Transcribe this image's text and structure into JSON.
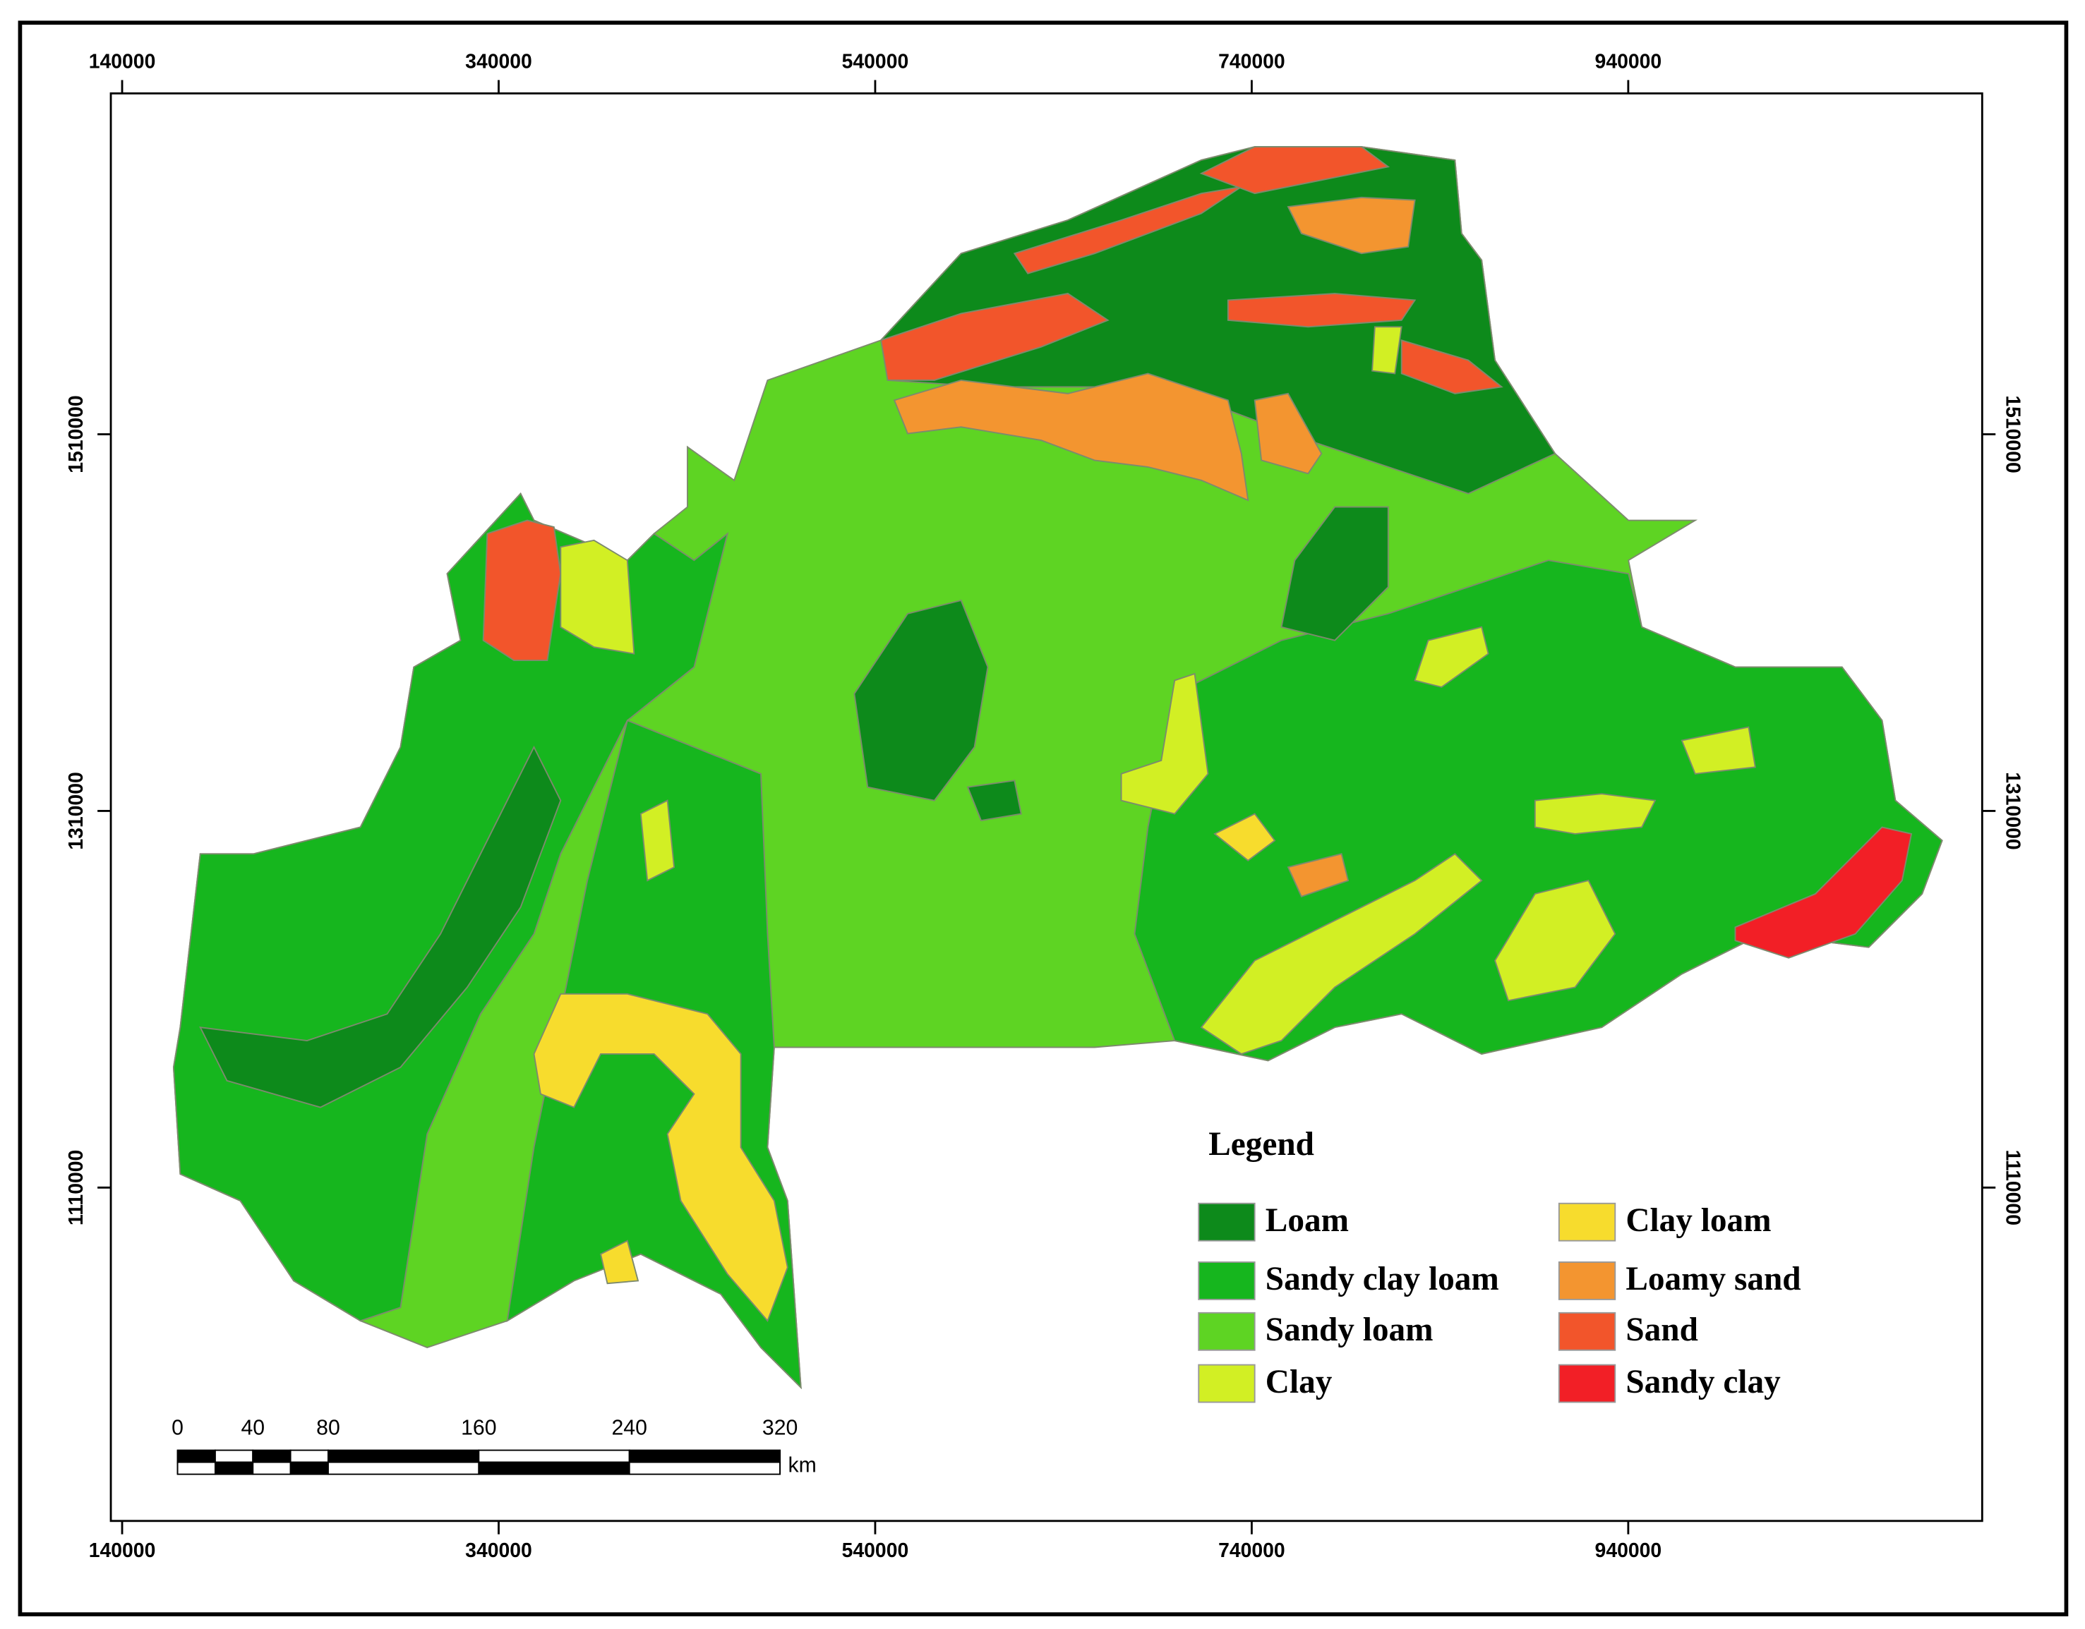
{
  "frame": {
    "xlim": [
      134000,
      1128000
    ],
    "ylim": [
      933000,
      1691000
    ],
    "xticks": [
      140000,
      340000,
      540000,
      740000,
      940000
    ],
    "yticks": [
      1110000,
      1310000,
      1510000
    ]
  },
  "legend": {
    "title": "Legend",
    "items": [
      {
        "label": "Loam",
        "color": "#0d8a1b"
      },
      {
        "label": "Sandy clay loam",
        "color": "#16b61e"
      },
      {
        "label": "Sandy loam",
        "color": "#5ed423"
      },
      {
        "label": "Clay",
        "color": "#d2ef24"
      },
      {
        "label": "Clay loam",
        "color": "#f7dc2d"
      },
      {
        "label": "Loamy sand",
        "color": "#f39530"
      },
      {
        "label": "Sand",
        "color": "#f2552b"
      },
      {
        "label": "Sandy clay",
        "color": "#f21f26"
      }
    ]
  },
  "scale_bar": {
    "ticks": [
      0,
      40,
      80,
      160,
      240,
      320
    ],
    "unit": "km"
  }
}
